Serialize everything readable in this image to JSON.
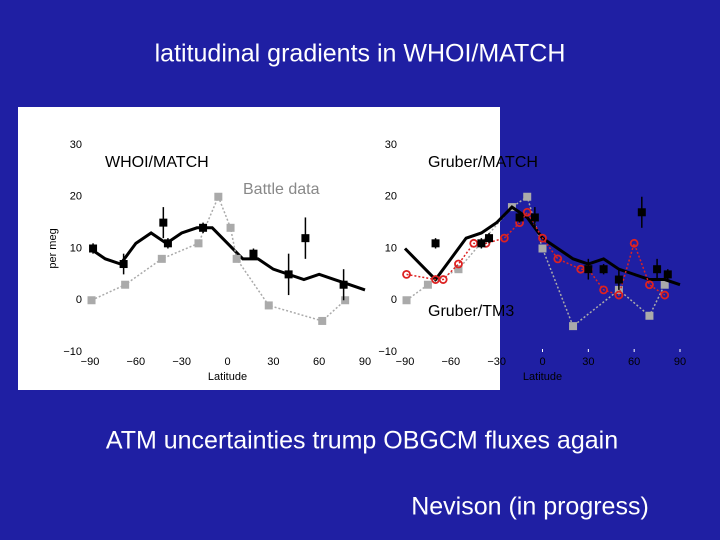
{
  "header": {
    "title": "latitudinal gradients in WHOI/MATCH"
  },
  "chart_data": [
    {
      "type": "line",
      "xlabel": "Latitude",
      "ylabel": "per meg",
      "annotations": [
        "WHOI/MATCH",
        "Battle data"
      ],
      "xlim": [
        -90,
        90
      ],
      "ylim": [
        -10,
        30
      ],
      "xticks": [
        {
          "value": -90,
          "label": "−90"
        },
        {
          "value": -60,
          "label": "−60"
        },
        {
          "value": -30,
          "label": "−30"
        },
        0,
        30,
        60,
        90
      ],
      "yticks": [
        {
          "value": -10,
          "label": "−10"
        },
        0,
        10,
        20,
        30
      ],
      "series": [
        {
          "color": "#000000",
          "line": "solid",
          "marker": "none",
          "x": [
            -90,
            -80,
            -70,
            -60,
            -50,
            -40,
            -30,
            -20,
            -10,
            0,
            10,
            20,
            30,
            40,
            50,
            60,
            70,
            80,
            90
          ],
          "values": [
            10,
            8,
            7,
            11,
            13,
            11,
            13,
            14,
            14,
            11,
            8,
            8,
            6,
            5,
            4,
            5,
            4,
            3,
            2
          ]
        },
        {
          "color": "#aaaaaa",
          "line": "dotted",
          "marker": "square",
          "x": [
            -89,
            -67,
            -43,
            -19,
            -6,
            2,
            6,
            27,
            62,
            77
          ],
          "values": [
            0,
            3,
            8,
            11,
            20,
            14,
            8,
            -1,
            -4,
            0
          ]
        },
        {
          "color": "#000000",
          "line": "none",
          "marker": "square",
          "x": [
            -88,
            -68,
            -42,
            -39,
            -16,
            17,
            40,
            51,
            76
          ],
          "values": [
            10,
            7,
            15,
            11,
            14,
            9,
            5,
            12,
            3
          ],
          "errors": [
            1,
            2,
            3,
            1,
            1,
            1,
            4,
            4,
            3
          ]
        }
      ]
    },
    {
      "type": "line",
      "xlabel": "Latitude",
      "annotations": [
        "Gruber/MATCH",
        "Gruber/TM3"
      ],
      "xlim": [
        -90,
        90
      ],
      "ylim": [
        -10,
        30
      ],
      "xticks": [
        {
          "value": -90,
          "label": "−90"
        },
        {
          "value": -60,
          "label": "−60"
        },
        {
          "value": -30,
          "label": "−30"
        },
        0,
        30,
        60,
        90
      ],
      "yticks": [
        {
          "value": -10,
          "label": "−10"
        },
        0,
        10,
        20,
        30
      ],
      "series": [
        {
          "color": "#aaaaaa",
          "line": "dotted",
          "marker": "square",
          "x": [
            -89,
            -75,
            -55,
            -20,
            -10,
            0,
            20,
            50,
            70,
            80
          ],
          "values": [
            0,
            3,
            6,
            18,
            20,
            10,
            -5,
            2,
            -3,
            3
          ]
        },
        {
          "color": "#000000",
          "line": "solid",
          "marker": "none",
          "x": [
            -90,
            -80,
            -70,
            -60,
            -50,
            -40,
            -30,
            -20,
            -10,
            0,
            10,
            20,
            30,
            40,
            50,
            60,
            70,
            80,
            90
          ],
          "values": [
            10,
            7,
            4,
            8,
            12,
            13,
            15,
            18,
            16,
            12,
            10,
            8,
            7,
            8,
            6,
            5,
            4,
            4,
            3
          ]
        },
        {
          "color": "#dd2222",
          "line": "dotted",
          "marker": "circle",
          "x": [
            -89,
            -70,
            -65,
            -55,
            -45,
            -37,
            -25,
            -15,
            -10,
            0,
            10,
            25,
            30,
            40,
            50,
            60,
            70,
            80
          ],
          "values": [
            5,
            4,
            4,
            7,
            11,
            11,
            12,
            15,
            17,
            12,
            8,
            6,
            6,
            2,
            1,
            11,
            3,
            1
          ]
        },
        {
          "color": "#000000",
          "line": "none",
          "marker": "square",
          "x": [
            -70,
            -40,
            -35,
            -15,
            -5,
            30,
            40,
            50,
            65,
            75,
            82
          ],
          "values": [
            11,
            11,
            12,
            16,
            16,
            6,
            6,
            4,
            17,
            6,
            5
          ],
          "errors": [
            1,
            1,
            1,
            1,
            2,
            2,
            1,
            2,
            3,
            2,
            1
          ]
        }
      ]
    }
  ],
  "footer": {
    "text": "ATM uncertainties trump OBGCM fluxes again",
    "credit": "Nevison (in progress)"
  }
}
